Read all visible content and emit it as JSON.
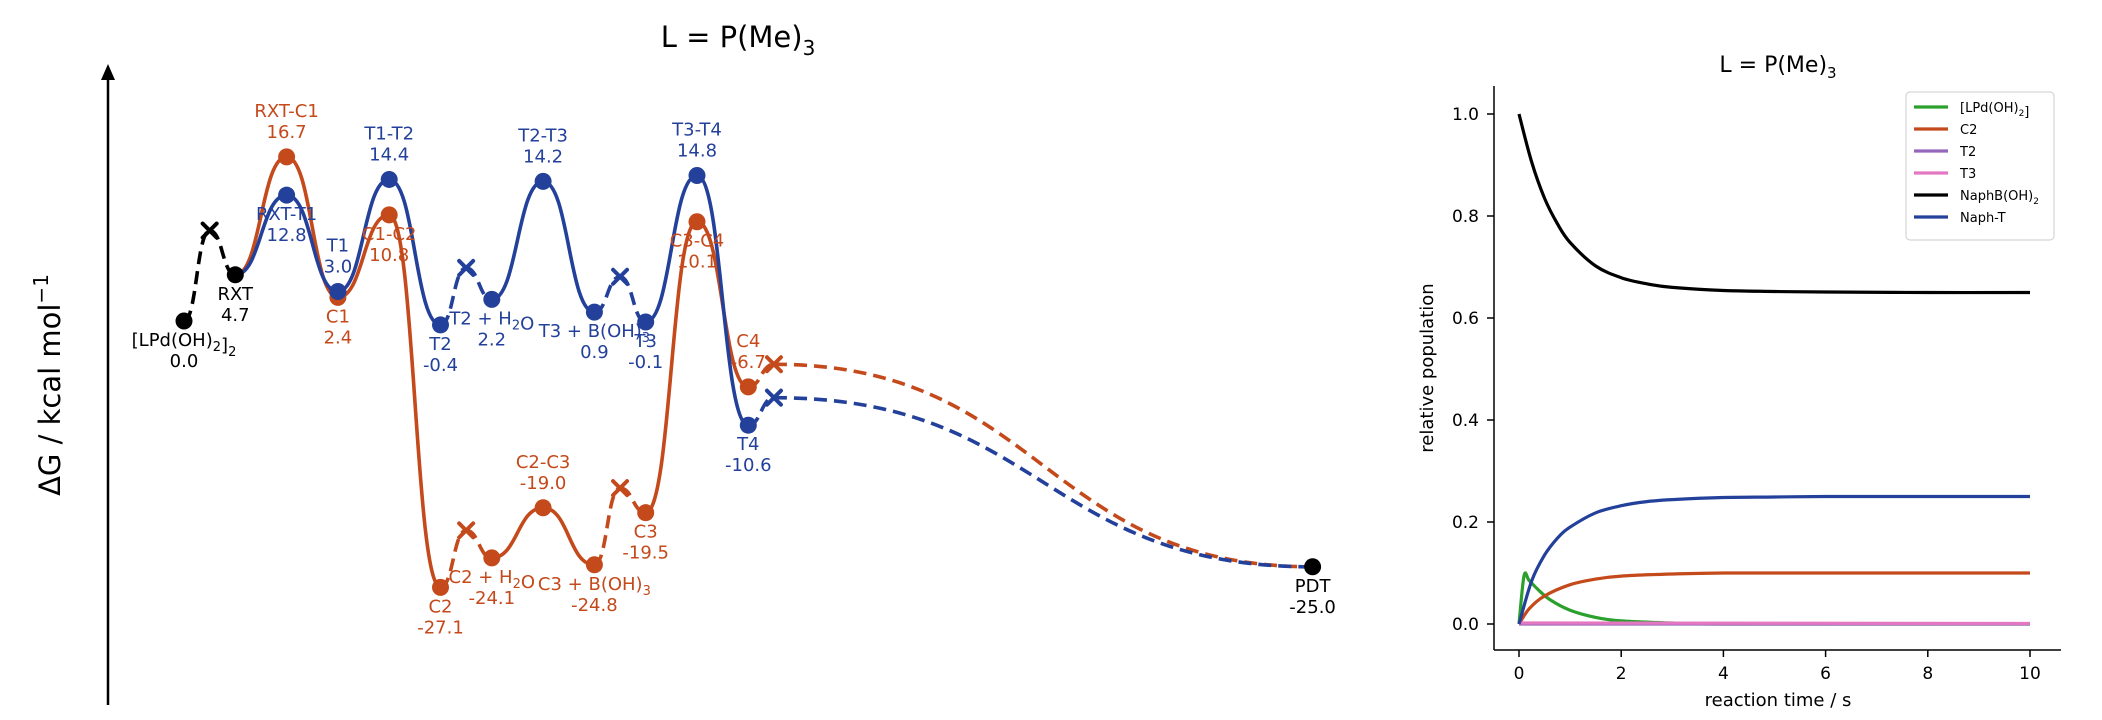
{
  "chart_data": [
    {
      "type": "energy-profile",
      "title": "L = P(Me)₃",
      "title_main": "L = P(Me)",
      "title_sub": "3",
      "ylabel": "ΔG / kcal mol⁻¹",
      "ylabel_main": "ΔG / kcal mol",
      "ylabel_sup": "−1",
      "colors": {
        "common": "#000000",
        "T": "#23409a",
        "C": "#c4491b"
      },
      "common_states": [
        {
          "x": 0,
          "g": 0.0,
          "label": "[LPd(OH)₂]₂",
          "value": "0.0"
        },
        {
          "x": 1,
          "g": 4.7,
          "label": "RXT",
          "value": "4.7"
        },
        {
          "x": 22,
          "g": -25.0,
          "label": "PDT",
          "value": "-25.0"
        }
      ],
      "common_ts_marker": {
        "x": 0.5,
        "g": 9.2
      },
      "T_path": [
        {
          "x": 2,
          "g": 12.8,
          "label": "RXT-T1",
          "value": "12.8",
          "kind": "ts"
        },
        {
          "x": 3,
          "g": 3.0,
          "label": "T1",
          "value": "3.0",
          "kind": "int"
        },
        {
          "x": 4,
          "g": 14.4,
          "label": "T1-T2",
          "value": "14.4",
          "kind": "ts"
        },
        {
          "x": 5,
          "g": -0.4,
          "label": "T2",
          "value": "-0.4",
          "kind": "int"
        },
        {
          "x": 6,
          "g": 2.2,
          "label": "T2 + H₂O",
          "value": "2.2",
          "kind": "int"
        },
        {
          "x": 7,
          "g": 14.2,
          "label": "T2-T3",
          "value": "14.2",
          "kind": "ts"
        },
        {
          "x": 8,
          "g": 0.9,
          "label": "T3 + B(OH)₃",
          "value": "0.9",
          "kind": "int"
        },
        {
          "x": 9,
          "g": -0.1,
          "label": "T3",
          "value": "-0.1",
          "kind": "int"
        },
        {
          "x": 10,
          "g": 14.8,
          "label": "T3-T4",
          "value": "14.8",
          "kind": "ts"
        },
        {
          "x": 11,
          "g": -10.6,
          "label": "T4",
          "value": "-10.6",
          "kind": "int"
        }
      ],
      "T_ts_markers": [
        {
          "x": 5.5,
          "g": 5.4
        },
        {
          "x": 8.5,
          "g": 4.5
        },
        {
          "x": 11.5,
          "g": -7.8
        }
      ],
      "C_path": [
        {
          "x": 2,
          "g": 16.7,
          "label": "RXT-C1",
          "value": "16.7",
          "kind": "ts"
        },
        {
          "x": 3,
          "g": 2.4,
          "label": "C1",
          "value": "2.4",
          "kind": "int"
        },
        {
          "x": 4,
          "g": 10.8,
          "label": "C1-C2",
          "value": "10.8",
          "kind": "ts"
        },
        {
          "x": 5,
          "g": -27.1,
          "label": "C2",
          "value": "-27.1",
          "kind": "int"
        },
        {
          "x": 6,
          "g": -24.1,
          "label": "C2 + H₂O",
          "value": "-24.1",
          "kind": "int"
        },
        {
          "x": 7,
          "g": -19.0,
          "label": "C2-C3",
          "value": "-19.0",
          "kind": "ts"
        },
        {
          "x": 8,
          "g": -24.8,
          "label": "C3 + B(OH)₃",
          "value": "-24.8",
          "kind": "int"
        },
        {
          "x": 9,
          "g": -19.5,
          "label": "C3",
          "value": "-19.5",
          "kind": "int"
        },
        {
          "x": 10,
          "g": 10.1,
          "label": "C3-C4",
          "value": "10.1",
          "kind": "ts"
        },
        {
          "x": 11,
          "g": -6.7,
          "label": "C4",
          "value": "-6.7",
          "kind": "int"
        }
      ],
      "C_ts_markers": [
        {
          "x": 5.5,
          "g": -21.3
        },
        {
          "x": 8.5,
          "g": -17.0
        },
        {
          "x": 11.5,
          "g": -4.4
        }
      ]
    },
    {
      "type": "line",
      "title": "L = P(Me)₃",
      "title_main": "L = P(Me)",
      "title_sub": "3",
      "xlabel": "reaction time / s",
      "ylabel": "relative population",
      "xlim": [
        -0.3,
        10.5
      ],
      "ylim": [
        -0.05,
        1.05
      ],
      "xticks": [
        "0",
        "2",
        "4",
        "6",
        "8",
        "10"
      ],
      "yticks": [
        "0.0",
        "0.2",
        "0.4",
        "0.6",
        "0.8",
        "1.0"
      ],
      "legend_position": "top-right",
      "series": [
        {
          "name": "[LPd(OH)₂]",
          "color": "#2ca02c",
          "x": [
            0,
            0.1,
            0.2,
            0.4,
            0.6,
            1.0,
            1.5,
            2.0,
            3.0,
            4.0,
            10.0
          ],
          "y": [
            0,
            0.095,
            0.085,
            0.065,
            0.048,
            0.027,
            0.013,
            0.006,
            0.002,
            0.0,
            0.0
          ]
        },
        {
          "name": "C2",
          "color": "#c4491b",
          "x": [
            0,
            0.2,
            0.5,
            1.0,
            1.5,
            2.0,
            3.0,
            4.0,
            6.0,
            10.0
          ],
          "y": [
            0,
            0.03,
            0.055,
            0.077,
            0.088,
            0.094,
            0.098,
            0.1,
            0.1,
            0.1
          ]
        },
        {
          "name": "T2",
          "color": "#9467bd",
          "x": [
            0,
            10
          ],
          "y": [
            0.0,
            0.0
          ]
        },
        {
          "name": "T3",
          "color": "#e377c2",
          "x": [
            0,
            10
          ],
          "y": [
            0.002,
            0.001
          ]
        },
        {
          "name": "NaphB(OH)₂",
          "color": "#000000",
          "x": [
            0,
            0.25,
            0.5,
            0.75,
            1.0,
            1.5,
            2.0,
            2.5,
            3.0,
            4.0,
            5.0,
            6.0,
            8.0,
            10.0
          ],
          "y": [
            1.0,
            0.905,
            0.835,
            0.785,
            0.748,
            0.702,
            0.679,
            0.667,
            0.66,
            0.654,
            0.652,
            0.651,
            0.65,
            0.65
          ]
        },
        {
          "name": "Naph-T",
          "color": "#23409a",
          "x": [
            0,
            0.25,
            0.5,
            0.75,
            1.0,
            1.5,
            2.0,
            2.5,
            3.0,
            4.0,
            5.0,
            6.0,
            8.0,
            10.0
          ],
          "y": [
            0,
            0.085,
            0.135,
            0.168,
            0.19,
            0.218,
            0.232,
            0.24,
            0.244,
            0.248,
            0.249,
            0.25,
            0.25,
            0.25
          ]
        }
      ]
    }
  ]
}
